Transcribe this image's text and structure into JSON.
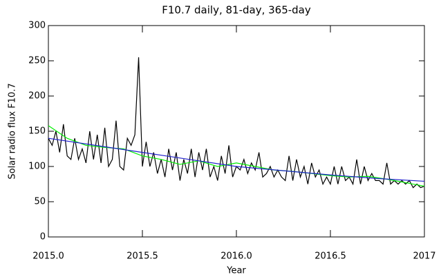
{
  "chart_data": {
    "type": "line",
    "title": "F10.7 daily, 81-day, 365-day",
    "x_label": "Year",
    "y_label": "Solar radio flux F10.7",
    "xlim": [
      2015,
      2017
    ],
    "ylim": [
      0,
      300
    ],
    "xticks": [
      {
        "value": 2015,
        "label": "2015.0"
      },
      2015.5,
      {
        "value": 2016,
        "label": "2016.0"
      },
      2016.5,
      2017
    ],
    "yticks": [
      0,
      50,
      100,
      150,
      200,
      250,
      300
    ],
    "series": [
      {
        "name": "daily",
        "color": "#000000",
        "x": [
          2015.0,
          2015.02,
          2015.04,
          2015.06,
          2015.08,
          2015.1,
          2015.12,
          2015.14,
          2015.16,
          2015.18,
          2015.2,
          2015.22,
          2015.24,
          2015.26,
          2015.28,
          2015.3,
          2015.32,
          2015.34,
          2015.36,
          2015.38,
          2015.4,
          2015.42,
          2015.44,
          2015.46,
          2015.48,
          2015.5,
          2015.52,
          2015.54,
          2015.56,
          2015.58,
          2015.6,
          2015.62,
          2015.64,
          2015.66,
          2015.68,
          2015.7,
          2015.72,
          2015.74,
          2015.76,
          2015.78,
          2015.8,
          2015.82,
          2015.84,
          2015.86,
          2015.88,
          2015.9,
          2015.92,
          2015.94,
          2015.96,
          2015.98,
          2016.0,
          2016.02,
          2016.04,
          2016.06,
          2016.08,
          2016.1,
          2016.12,
          2016.14,
          2016.16,
          2016.18,
          2016.2,
          2016.22,
          2016.24,
          2016.26,
          2016.28,
          2016.3,
          2016.32,
          2016.34,
          2016.36,
          2016.38,
          2016.4,
          2016.42,
          2016.44,
          2016.46,
          2016.48,
          2016.5,
          2016.52,
          2016.54,
          2016.56,
          2016.58,
          2016.6,
          2016.62,
          2016.64,
          2016.66,
          2016.68,
          2016.7,
          2016.72,
          2016.74,
          2016.76,
          2016.78,
          2016.8,
          2016.82,
          2016.84,
          2016.86,
          2016.88,
          2016.9,
          2016.92,
          2016.94,
          2016.96,
          2016.98,
          2017.0
        ],
        "values": [
          140,
          130,
          150,
          120,
          160,
          115,
          110,
          140,
          110,
          125,
          105,
          150,
          110,
          145,
          105,
          155,
          100,
          110,
          165,
          100,
          95,
          140,
          130,
          145,
          255,
          100,
          135,
          100,
          120,
          90,
          110,
          85,
          125,
          95,
          120,
          80,
          110,
          90,
          125,
          85,
          120,
          95,
          125,
          85,
          100,
          80,
          115,
          90,
          130,
          85,
          100,
          95,
          110,
          90,
          105,
          95,
          120,
          85,
          90,
          100,
          85,
          95,
          85,
          80,
          115,
          80,
          110,
          85,
          100,
          75,
          105,
          85,
          95,
          75,
          85,
          75,
          100,
          75,
          100,
          80,
          85,
          75,
          110,
          75,
          100,
          80,
          90,
          80,
          80,
          75,
          105,
          75,
          80,
          75,
          80,
          75,
          80,
          70,
          75,
          70,
          72
        ]
      },
      {
        "name": "81-day",
        "color": "#00ee00",
        "x": [
          2015.0,
          2015.1,
          2015.2,
          2015.3,
          2015.4,
          2015.5,
          2015.6,
          2015.7,
          2015.8,
          2015.9,
          2016.0,
          2016.1,
          2016.2,
          2016.3,
          2016.4,
          2016.5,
          2016.6,
          2016.7,
          2016.8,
          2016.9,
          2017.0
        ],
        "values": [
          158,
          140,
          130,
          127,
          125,
          115,
          110,
          103,
          108,
          100,
          105,
          100,
          95,
          93,
          90,
          87,
          85,
          86,
          82,
          77,
          72
        ]
      },
      {
        "name": "365-day",
        "color": "#2020cc",
        "x": [
          2015.0,
          2015.25,
          2015.5,
          2015.75,
          2016.0,
          2016.25,
          2016.5,
          2016.75,
          2017.0
        ],
        "values": [
          140,
          130,
          120,
          110,
          100,
          94,
          88,
          83,
          79
        ]
      }
    ]
  }
}
